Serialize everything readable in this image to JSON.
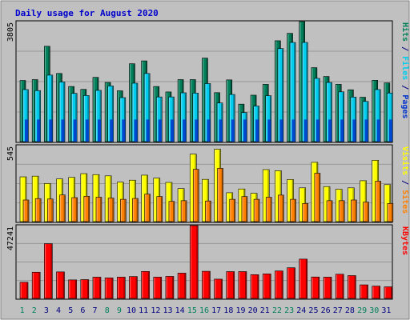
{
  "chart_data": [
    {
      "type": "bar",
      "title": "Daily usage for August 2020",
      "ylim": [
        0,
        3805
      ],
      "y_max_label": "3805",
      "right_label": [
        "Pages",
        "Files",
        "Hits"
      ],
      "categories": [
        "1",
        "2",
        "3",
        "4",
        "5",
        "6",
        "7",
        "8",
        "9",
        "10",
        "11",
        "12",
        "13",
        "14",
        "15",
        "16",
        "17",
        "18",
        "19",
        "20",
        "21",
        "22",
        "23",
        "24",
        "25",
        "26",
        "27",
        "28",
        "29",
        "30",
        "31"
      ],
      "series": [
        {
          "name": "Hits",
          "color": "#00805a",
          "values": [
            1939,
            1966,
            3023,
            2161,
            1748,
            1656,
            2037,
            1876,
            1611,
            2469,
            2560,
            1748,
            1575,
            1966,
            1966,
            2648,
            1552,
            1957,
            1188,
            1472,
            1816,
            3198,
            3433,
            3805,
            2345,
            2065,
            1816,
            1643,
            1407,
            1944,
            1862
          ]
        },
        {
          "name": "Files",
          "color": "#00ccee",
          "values": [
            1650,
            1618,
            2108,
            1890,
            1530,
            1462,
            1625,
            1765,
            1395,
            1852,
            2160,
            1416,
            1417,
            1547,
            1538,
            1840,
            1225,
            1495,
            920,
            1128,
            1456,
            2950,
            3145,
            3145,
            2005,
            1876,
            1578,
            1412,
            1274,
            1650,
            1541
          ]
        },
        {
          "name": "Pages",
          "color": "#0033cc",
          "values": [
            700,
            700,
            700,
            700,
            700,
            700,
            700,
            700,
            700,
            700,
            700,
            700,
            700,
            700,
            700,
            700,
            700,
            700,
            700,
            700,
            700,
            700,
            700,
            700,
            700,
            700,
            700,
            700,
            700,
            700,
            700
          ]
        }
      ]
    },
    {
      "type": "bar",
      "ylim": [
        0,
        545
      ],
      "y_max_label": "545",
      "right_label": [
        "Sites",
        "Visits"
      ],
      "categories": [
        "1",
        "2",
        "3",
        "4",
        "5",
        "6",
        "7",
        "8",
        "9",
        "10",
        "11",
        "12",
        "13",
        "14",
        "15",
        "16",
        "17",
        "18",
        "19",
        "20",
        "21",
        "22",
        "23",
        "24",
        "25",
        "26",
        "27",
        "28",
        "29",
        "30",
        "31"
      ],
      "series": [
        {
          "name": "Visits",
          "color": "#ffff00",
          "values": [
            321,
            326,
            273,
            306,
            317,
            344,
            337,
            328,
            283,
            297,
            333,
            312,
            281,
            237,
            484,
            303,
            519,
            207,
            234,
            203,
            373,
            365,
            302,
            242,
            425,
            251,
            232,
            242,
            293,
            440,
            265
          ]
        },
        {
          "name": "Sites",
          "color": "#ff8000",
          "values": [
            155,
            165,
            162,
            191,
            172,
            182,
            175,
            169,
            160,
            166,
            197,
            180,
            145,
            150,
            375,
            148,
            382,
            160,
            180,
            160,
            175,
            190,
            160,
            130,
            347,
            150,
            150,
            155,
            140,
            290,
            130
          ]
        }
      ]
    },
    {
      "type": "bar",
      "ylim": [
        0,
        47241
      ],
      "y_max_label": "47241",
      "right_label": [
        "KBytes"
      ],
      "categories": [
        "1",
        "2",
        "3",
        "4",
        "5",
        "6",
        "7",
        "8",
        "9",
        "10",
        "11",
        "12",
        "13",
        "14",
        "15",
        "16",
        "17",
        "18",
        "19",
        "20",
        "21",
        "22",
        "23",
        "24",
        "25",
        "26",
        "27",
        "28",
        "29",
        "30",
        "31"
      ],
      "series": [
        {
          "name": "KBytes",
          "color": "#ff0000",
          "values": [
            10500,
            17000,
            35500,
            17200,
            12000,
            12200,
            13800,
            13300,
            13800,
            14200,
            17500,
            13800,
            14300,
            16400,
            47241,
            17600,
            12500,
            17400,
            17400,
            15400,
            15900,
            17800,
            19900,
            25500,
            13900,
            13800,
            15700,
            14800,
            8800,
            8000,
            7500
          ]
        }
      ]
    }
  ],
  "weekend_days": [
    "1",
    "2",
    "8",
    "9",
    "15",
    "16",
    "22",
    "23",
    "29",
    "30"
  ],
  "colors": {
    "background": "#c0c0c0",
    "panel_border": "#000000",
    "weekend_label": "#00805a",
    "weekday_label": "#000080",
    "title": "#0000cc",
    "frame": "#ffffff"
  }
}
